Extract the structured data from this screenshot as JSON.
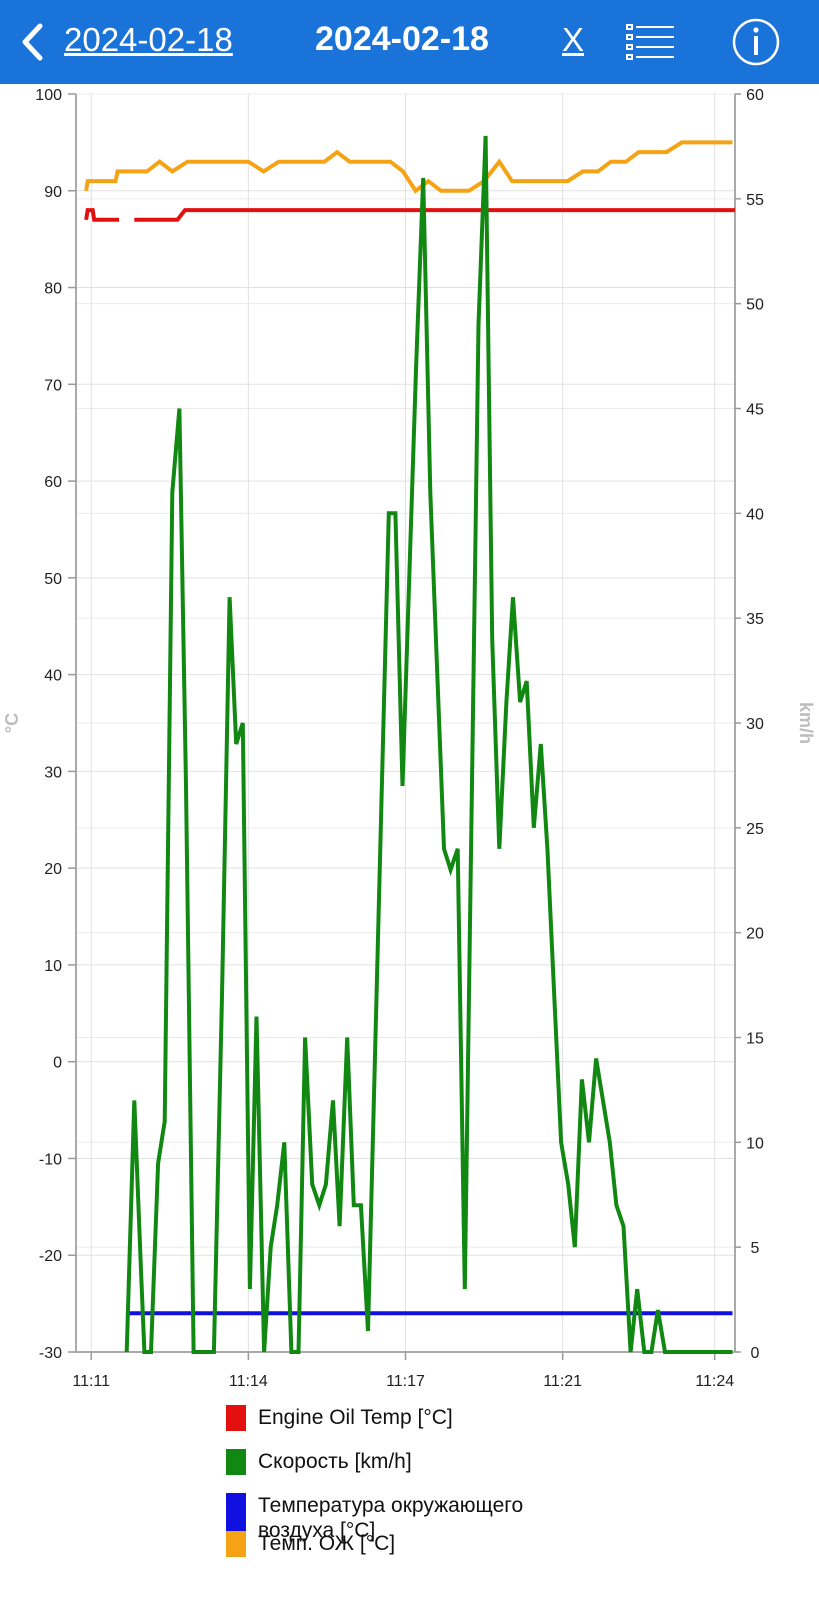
{
  "header": {
    "back_label": "2024-02-18",
    "title": "2024-02-18",
    "close_label": "X",
    "list_icon": "list-icon",
    "info_icon": "info-icon",
    "background_color": "#1a73d9"
  },
  "chart_data": {
    "type": "line",
    "title": "",
    "x_ticks": [
      "11:11",
      "11:14",
      "11:17",
      "11:21",
      "11:24"
    ],
    "x_tick_positions_min": [
      0.3,
      3.4,
      6.5,
      9.6,
      12.6
    ],
    "x_range_min": [
      0,
      13
    ],
    "y_left": {
      "label": "°C",
      "range": [
        -30,
        100
      ],
      "ticks": [
        100,
        90,
        80,
        70,
        60,
        50,
        40,
        30,
        20,
        10,
        0,
        -10,
        -20,
        -30
      ]
    },
    "y_right": {
      "label": "km/h",
      "range": [
        0,
        60
      ],
      "ticks": [
        60,
        55,
        50,
        45,
        40,
        35,
        30,
        25,
        20,
        15,
        10,
        5,
        0
      ]
    },
    "grid": true,
    "series": [
      {
        "name": "Engine Oil Temp [°C]",
        "axis": "left",
        "color": "#e31010",
        "segments": [
          [
            [
              0.2,
              87
            ],
            [
              0.23,
              88
            ],
            [
              0.33,
              88
            ],
            [
              0.36,
              87
            ],
            [
              0.85,
              87
            ]
          ],
          [
            [
              1.15,
              87
            ],
            [
              2.0,
              87
            ],
            [
              2.15,
              88
            ],
            [
              13.0,
              88
            ]
          ]
        ]
      },
      {
        "name": "Скорость [km/h]",
        "axis": "right",
        "color": "#118811",
        "segments": [
          [
            [
              1.0,
              0
            ],
            [
              1.15,
              12
            ],
            [
              1.28,
              4
            ],
            [
              1.35,
              0
            ],
            [
              1.48,
              0
            ],
            [
              1.62,
              9
            ],
            [
              1.75,
              11
            ],
            [
              1.9,
              41
            ],
            [
              2.04,
              45
            ],
            [
              2.17,
              27
            ],
            [
              2.32,
              0
            ],
            [
              2.72,
              0
            ],
            [
              2.88,
              17
            ],
            [
              3.03,
              36
            ],
            [
              3.16,
              29
            ],
            [
              3.29,
              30
            ],
            [
              3.43,
              3
            ],
            [
              3.56,
              16
            ],
            [
              3.71,
              0
            ],
            [
              3.84,
              5
            ],
            [
              3.97,
              7
            ],
            [
              4.11,
              10
            ],
            [
              4.25,
              0
            ],
            [
              4.39,
              0
            ],
            [
              4.52,
              15
            ],
            [
              4.66,
              8
            ],
            [
              4.8,
              7
            ],
            [
              4.93,
              8
            ],
            [
              5.07,
              12
            ],
            [
              5.2,
              6
            ],
            [
              5.35,
              15
            ],
            [
              5.48,
              7
            ],
            [
              5.62,
              7
            ],
            [
              5.76,
              1
            ],
            [
              6.17,
              40
            ],
            [
              6.3,
              40
            ],
            [
              6.44,
              27
            ],
            [
              6.71,
              47
            ],
            [
              6.85,
              56
            ],
            [
              6.99,
              41
            ],
            [
              7.26,
              24
            ],
            [
              7.39,
              23
            ],
            [
              7.53,
              24
            ],
            [
              7.67,
              3
            ],
            [
              7.94,
              49
            ],
            [
              8.08,
              58
            ],
            [
              8.21,
              34
            ],
            [
              8.35,
              24
            ],
            [
              8.49,
              31
            ],
            [
              8.62,
              36
            ],
            [
              8.76,
              31
            ],
            [
              8.89,
              32
            ],
            [
              9.03,
              25
            ],
            [
              9.17,
              29
            ],
            [
              9.3,
              24
            ],
            [
              9.57,
              10
            ],
            [
              9.71,
              8
            ],
            [
              9.84,
              5
            ],
            [
              9.98,
              13
            ],
            [
              10.12,
              10
            ],
            [
              10.26,
              14
            ],
            [
              10.53,
              10
            ],
            [
              10.66,
              7
            ],
            [
              10.8,
              6
            ],
            [
              10.94,
              0
            ],
            [
              11.07,
              3
            ],
            [
              11.21,
              0
            ],
            [
              11.35,
              0
            ],
            [
              11.48,
              2
            ],
            [
              11.62,
              0
            ],
            [
              12.95,
              0
            ]
          ]
        ]
      },
      {
        "name": "Температура окружающего воздуха [°C]",
        "axis": "left",
        "color": "#1010e0",
        "segments": [
          [
            [
              1.0,
              -26
            ],
            [
              12.95,
              -26
            ]
          ]
        ]
      },
      {
        "name": "Темп. ОЖ [°C]",
        "axis": "left",
        "color": "#f5a315",
        "segments": [
          [
            [
              0.2,
              90
            ],
            [
              0.23,
              91
            ],
            [
              0.78,
              91
            ],
            [
              0.82,
              92
            ],
            [
              1.4,
              92
            ],
            [
              1.65,
              93
            ],
            [
              1.9,
              92
            ],
            [
              2.2,
              93
            ],
            [
              3.4,
              93
            ],
            [
              3.7,
              92
            ],
            [
              4.0,
              93
            ],
            [
              4.9,
              93
            ],
            [
              5.15,
              94
            ],
            [
              5.4,
              93
            ],
            [
              6.2,
              93
            ],
            [
              6.45,
              92
            ],
            [
              6.7,
              90
            ],
            [
              6.95,
              91
            ],
            [
              7.2,
              90
            ],
            [
              7.75,
              90
            ],
            [
              8.05,
              91
            ],
            [
              8.35,
              93
            ],
            [
              8.6,
              91
            ],
            [
              9.7,
              91
            ],
            [
              10.0,
              92
            ],
            [
              10.3,
              92
            ],
            [
              10.55,
              93
            ],
            [
              10.85,
              93
            ],
            [
              11.1,
              94
            ],
            [
              11.65,
              94
            ],
            [
              11.95,
              95
            ],
            [
              12.95,
              95
            ]
          ]
        ]
      }
    ],
    "legend": [
      "Engine Oil Temp [°C]",
      "Скорость [km/h]",
      "Температура окружающего воздуха [°C]",
      "Темп. ОЖ [°C]"
    ],
    "legend_placement": "bottom"
  }
}
